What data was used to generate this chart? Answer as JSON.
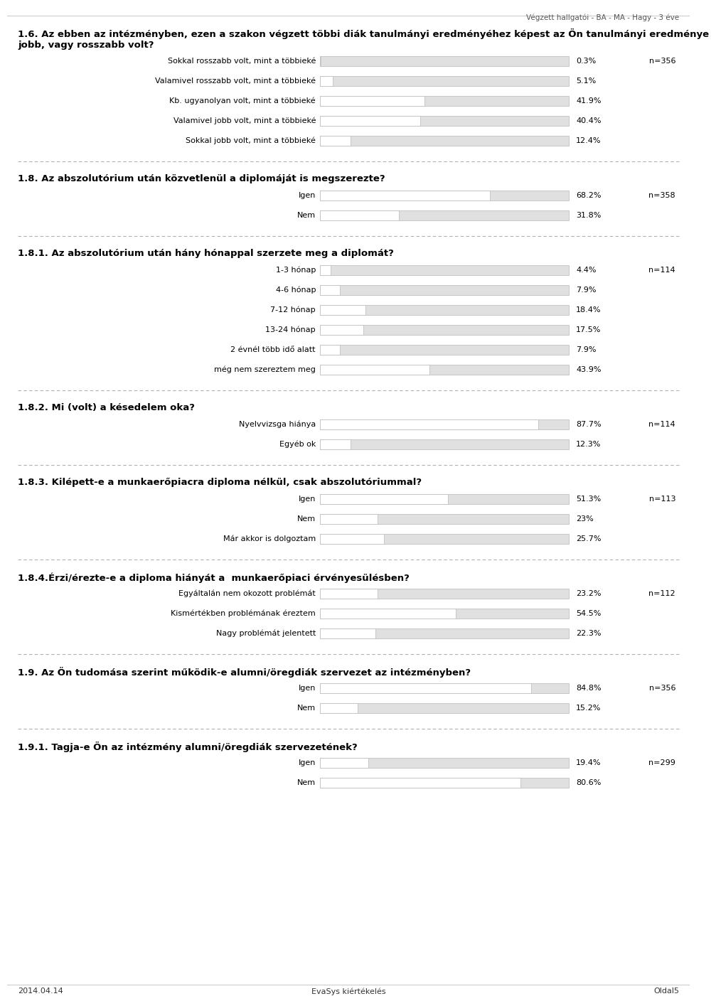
{
  "header_text": "Végzett hallgatói - BA - MA - Hagy - 3 éve",
  "footer_left": "2014.04.14",
  "footer_center": "EvaSys kiértékelés",
  "footer_right": "Oldal5",
  "sections": [
    {
      "question": "1.6. Az ebben az intézményben, ezen a szakon végzett többi diák tanulmányi eredményéhez képest az Ön tanulmányi eredménye\njobb, vagy rosszabb volt?",
      "n_label": "n=356",
      "bars": [
        {
          "label": "Sokkal rosszabb volt, mint a többieké",
          "value": 0.3,
          "pct": "0.3%"
        },
        {
          "label": "Valamivel rosszabb volt, mint a többieké",
          "value": 5.1,
          "pct": "5.1%"
        },
        {
          "label": "Kb. ugyanolyan volt, mint a többieké",
          "value": 41.9,
          "pct": "41.9%"
        },
        {
          "label": "Valamivel jobb volt, mint a többieké",
          "value": 40.4,
          "pct": "40.4%"
        },
        {
          "label": "Sokkal jobb volt, mint a többieké",
          "value": 12.4,
          "pct": "12.4%"
        }
      ]
    },
    {
      "question": "1.8. Az abszolutórium után közvetlenül a diplomáját is megszerezte?",
      "n_label": "n=358",
      "bars": [
        {
          "label": "Igen",
          "value": 68.2,
          "pct": "68.2%"
        },
        {
          "label": "Nem",
          "value": 31.8,
          "pct": "31.8%"
        }
      ]
    },
    {
      "question": "1.8.1. Az abszolutórium után hány hónappal szerzete meg a diplomát?",
      "n_label": "n=114",
      "bars": [
        {
          "label": "1-3 hónap",
          "value": 4.4,
          "pct": "4.4%"
        },
        {
          "label": "4-6 hónap",
          "value": 7.9,
          "pct": "7.9%"
        },
        {
          "label": "7-12 hónap",
          "value": 18.4,
          "pct": "18.4%"
        },
        {
          "label": "13-24 hónap",
          "value": 17.5,
          "pct": "17.5%"
        },
        {
          "label": "2 évnél több idő alatt",
          "value": 7.9,
          "pct": "7.9%"
        },
        {
          "label": "még nem szereztem meg",
          "value": 43.9,
          "pct": "43.9%"
        }
      ]
    },
    {
      "question": "1.8.2. Mi (volt) a késedelem oka?",
      "n_label": "n=114",
      "bars": [
        {
          "label": "Nyelvvizsga hiánya",
          "value": 87.7,
          "pct": "87.7%"
        },
        {
          "label": "Egyéb ok",
          "value": 12.3,
          "pct": "12.3%"
        }
      ]
    },
    {
      "question": "1.8.3. Kilépett-e a munkaerőpiacra diploma nélkül, csak abszolutóriummal?",
      "n_label": "n=113",
      "bars": [
        {
          "label": "Igen",
          "value": 51.3,
          "pct": "51.3%"
        },
        {
          "label": "Nem",
          "value": 23.0,
          "pct": "23%"
        },
        {
          "label": "Már akkor is dolgoztam",
          "value": 25.7,
          "pct": "25.7%"
        }
      ]
    },
    {
      "question": "1.8.4.Érzi/érezte-e a diploma hiányát a  munkaerőpiaci érvényesülésben?",
      "n_label": "n=112",
      "bars": [
        {
          "label": "Egyáltalán nem okozott problémát",
          "value": 23.2,
          "pct": "23.2%"
        },
        {
          "label": "Kismértékben problémának éreztem",
          "value": 54.5,
          "pct": "54.5%"
        },
        {
          "label": "Nagy problémát jelentett",
          "value": 22.3,
          "pct": "22.3%"
        }
      ]
    },
    {
      "question": "1.9. Az Ön tudomása szerint működik-e alumni/öregdiák szervezet az intézményben?",
      "n_label": "n=356",
      "bars": [
        {
          "label": "Igen",
          "value": 84.8,
          "pct": "84.8%"
        },
        {
          "label": "Nem",
          "value": 15.2,
          "pct": "15.2%"
        }
      ]
    },
    {
      "question": "1.9.1. Tagja-e Ön az intézmény alumni/öregdiák szervezetének?",
      "n_label": "n=299",
      "bars": [
        {
          "label": "Igen",
          "value": 19.4,
          "pct": "19.4%"
        },
        {
          "label": "Nem",
          "value": 80.6,
          "pct": "80.6%"
        }
      ]
    }
  ],
  "bg_color": "#ffffff",
  "label_fontsize": 8.0,
  "pct_fontsize": 8.0,
  "question_fontsize": 9.5,
  "n_fontsize": 8.0,
  "header_fontsize": 7.5,
  "footer_fontsize": 8.0
}
